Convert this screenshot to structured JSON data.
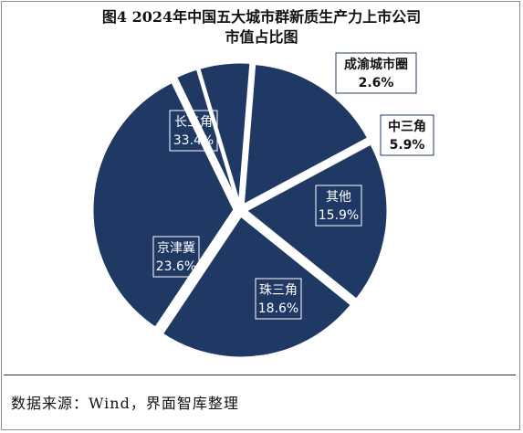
{
  "title_line1": "图4 2024年中国五大城市群新质生产力上市公司",
  "title_line2": "市值占比图",
  "source": "数据来源：Wind，界面智库整理",
  "colors": {
    "slice": "#1f3864",
    "slice_edge": "#ffffff",
    "label_box_inside": "#ffffff",
    "label_box_outside": "#1f3864"
  },
  "chart_data": {
    "type": "pie",
    "categories": [
      "成渝城市圈",
      "中三角",
      "其他",
      "珠三角",
      "京津冀",
      "长三角"
    ],
    "values": [
      2.6,
      5.9,
      15.9,
      18.6,
      23.6,
      33.4
    ],
    "value_labels": [
      "2.6%",
      "5.9%",
      "15.9%",
      "18.6%",
      "23.6%",
      "33.4%"
    ],
    "exploded": true,
    "label_placement": [
      "outside",
      "outside",
      "inside",
      "inside",
      "inside",
      "inside"
    ]
  }
}
